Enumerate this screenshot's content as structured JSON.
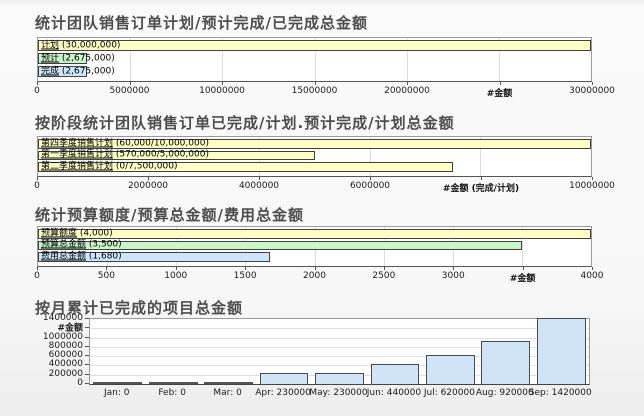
{
  "page": {
    "background": "#f7f7f7",
    "title_color": "#4d4d4d",
    "plot_border_color": "#9a9a9a",
    "grid_color": "#dcdcdc",
    "bar_border_color": "#404040"
  },
  "chart_data": [
    {
      "type": "bar",
      "orientation": "horizontal",
      "title": "统计团队销售订单计划/预计完成/已完成总金额",
      "xmax": 30000000,
      "xlabel": "#金额",
      "grid": true,
      "bars": [
        {
          "key": "plan",
          "name": "计划",
          "value_label": "(30,000,000)",
          "value": 30000000,
          "color": "#ffffc6"
        },
        {
          "key": "forecast",
          "name": "预计",
          "value_label": "(2,675,000)",
          "value": 2675000,
          "color": "#c9f5c9"
        },
        {
          "key": "done",
          "name": "完成",
          "value_label": "(2,675,000)",
          "value": 2675000,
          "color": "#cce5fa"
        }
      ],
      "xticks": [
        {
          "label": "0",
          "value": 0
        },
        {
          "label": "5000000",
          "value": 5000000
        },
        {
          "label": "10000000",
          "value": 10000000
        },
        {
          "label": "15000000",
          "value": 15000000
        },
        {
          "label": "20000000",
          "value": 20000000
        },
        {
          "label": "#金额",
          "value": 25000000,
          "note": true
        },
        {
          "label": "30000000",
          "value": 30000000
        }
      ]
    },
    {
      "type": "bar",
      "orientation": "horizontal",
      "title": "按阶段统计团队销售订单已完成/计划.预计完成/计划总金额",
      "xmax": 10000000,
      "xlabel": "#金额 (完成/计划)",
      "grid": true,
      "bars": [
        {
          "key": "q4-sales-plan",
          "name": "第四季度销售计划",
          "value_label": "(60,000/10,000,000)",
          "value": 10000000,
          "color": "#ffffc6"
        },
        {
          "key": "q1-sales-plan",
          "name": "第一季度销售计划",
          "value_label": "(570,000/5,000,000)",
          "value": 5000000,
          "color": "#ffffc6"
        },
        {
          "key": "q2-sales-plan",
          "name": "第二季度销售计划",
          "value_label": "(0/7,500,000)",
          "value": 7500000,
          "color": "#ffffc6"
        }
      ],
      "xticks": [
        {
          "label": "0",
          "value": 0
        },
        {
          "label": "2000000",
          "value": 2000000
        },
        {
          "label": "4000000",
          "value": 4000000
        },
        {
          "label": "6000000",
          "value": 6000000
        },
        {
          "label": "#金额 (完成/计划)",
          "value": 8000000,
          "note": true
        },
        {
          "label": "10000000",
          "value": 10000000
        }
      ]
    },
    {
      "type": "bar",
      "orientation": "horizontal",
      "title": "统计预算额度/预算总金额/费用总金额",
      "xmax": 4000,
      "xlabel": "#金额",
      "grid": true,
      "bars": [
        {
          "key": "budget-quota",
          "name": "预算额度",
          "value_label": "(4,000)",
          "value": 4000,
          "color": "#ffffc6"
        },
        {
          "key": "budget-total",
          "name": "预算总金额",
          "value_label": "(3,500)",
          "value": 3500,
          "color": "#c9f5c9"
        },
        {
          "key": "expense-total",
          "name": "费用总金额",
          "value_label": "(1,680)",
          "value": 1680,
          "color": "#cce5fa"
        }
      ],
      "xticks": [
        {
          "label": "0",
          "value": 0
        },
        {
          "label": "500",
          "value": 500
        },
        {
          "label": "1000",
          "value": 1000
        },
        {
          "label": "1500",
          "value": 1500
        },
        {
          "label": "2000",
          "value": 2000
        },
        {
          "label": "2500",
          "value": 2500
        },
        {
          "label": "3000",
          "value": 3000
        },
        {
          "label": "#金额",
          "value": 3500,
          "note": true
        },
        {
          "label": "4000",
          "value": 4000
        }
      ]
    },
    {
      "type": "bar",
      "orientation": "vertical",
      "title": "按月累计已完成的项目总金额",
      "ymax": 1400000,
      "ylabel": "#金额",
      "grid": true,
      "bar_color": "#cfe4f7",
      "categories": [
        {
          "key": "jan",
          "label": "Jan: 0",
          "value": 0
        },
        {
          "key": "feb",
          "label": "Feb: 0",
          "value": 0
        },
        {
          "key": "mar",
          "label": "Mar: 0",
          "value": 0
        },
        {
          "key": "apr",
          "label": "Apr: 230000",
          "value": 230000
        },
        {
          "key": "may",
          "label": "May: 230000",
          "value": 230000
        },
        {
          "key": "jun",
          "label": "Jun: 440000",
          "value": 440000
        },
        {
          "key": "jul",
          "label": "Jul: 620000",
          "value": 620000
        },
        {
          "key": "aug",
          "label": "Aug: 920000",
          "value": 920000
        },
        {
          "key": "sep",
          "label": "Sep: 1420000",
          "value": 1420000
        }
      ],
      "yticks": [
        {
          "label": "0",
          "value": 0
        },
        {
          "label": "200000",
          "value": 200000
        },
        {
          "label": "400000",
          "value": 400000
        },
        {
          "label": "600000",
          "value": 600000
        },
        {
          "label": "800000",
          "value": 800000
        },
        {
          "label": "1000000",
          "value": 1000000
        },
        {
          "label": "#金额",
          "value": 1200000,
          "note": true
        },
        {
          "label": "1400000",
          "value": 1400000
        }
      ]
    }
  ]
}
